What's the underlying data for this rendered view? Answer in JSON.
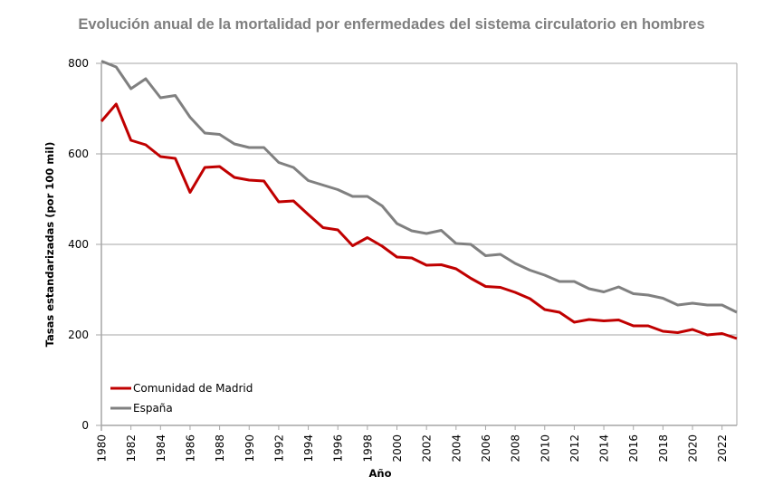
{
  "chart_data": {
    "type": "line",
    "title": "Evolución anual de la mortalidad por enfermedades del sistema circulatorio en hombres",
    "xlabel": "Año",
    "ylabel": "Tasas estandarizadas (por 100 mil)",
    "ylim": [
      0,
      800
    ],
    "yticks": [
      "0",
      "200",
      "400",
      "600",
      "800"
    ],
    "ytick_values": [
      0,
      200,
      400,
      600,
      800
    ],
    "grid": true,
    "legend_position": "bottom-left",
    "x": [
      1980,
      1981,
      1982,
      1983,
      1984,
      1985,
      1986,
      1987,
      1988,
      1989,
      1990,
      1991,
      1992,
      1993,
      1994,
      1995,
      1996,
      1997,
      1998,
      1999,
      2000,
      2001,
      2002,
      2003,
      2004,
      2005,
      2006,
      2007,
      2008,
      2009,
      2010,
      2011,
      2012,
      2013,
      2014,
      2015,
      2016,
      2017,
      2018,
      2019,
      2020,
      2021,
      2022,
      2023
    ],
    "xtick_labels": [
      "1980",
      "1982",
      "1984",
      "1986",
      "1988",
      "1990",
      "1992",
      "1994",
      "1996",
      "1998",
      "2000",
      "2002",
      "2004",
      "2006",
      "2008",
      "2010",
      "2012",
      "2014",
      "2016",
      "2018",
      "2020",
      "2022"
    ],
    "series": [
      {
        "name": "Comunidad de Madrid",
        "color": "#c00000",
        "values": [
          672,
          710,
          630,
          620,
          594,
          590,
          515,
          570,
          572,
          548,
          542,
          540,
          494,
          496,
          466,
          437,
          432,
          397,
          415,
          396,
          372,
          370,
          354,
          355,
          346,
          325,
          307,
          305,
          294,
          280,
          256,
          250,
          228,
          234,
          231,
          233,
          220,
          220,
          208,
          205,
          212,
          200,
          203,
          192
        ]
      },
      {
        "name": "España",
        "color": "#808080",
        "values": [
          805,
          792,
          744,
          766,
          724,
          729,
          681,
          646,
          643,
          622,
          614,
          614,
          581,
          570,
          541,
          531,
          521,
          506,
          506,
          485,
          446,
          430,
          424,
          431,
          402,
          400,
          375,
          378,
          358,
          343,
          332,
          318,
          318,
          302,
          295,
          306,
          291,
          288,
          281,
          266,
          270,
          266,
          266,
          250
        ]
      }
    ]
  }
}
